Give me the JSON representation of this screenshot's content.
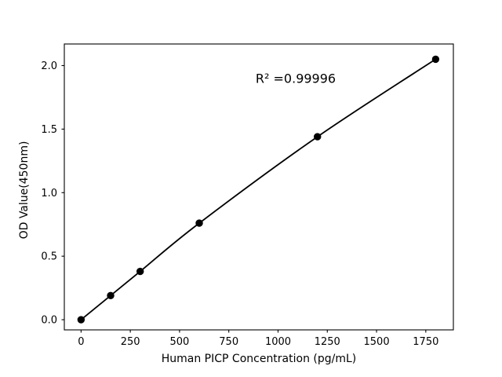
{
  "chart_data": {
    "type": "line",
    "title": "",
    "xlabel": "Human PICP Concentration (pg/mL)",
    "ylabel": "OD Value(450nm)",
    "annotation": {
      "text": "R² =0.99996"
    },
    "x": [
      0,
      150,
      300,
      600,
      1200,
      1800
    ],
    "y": [
      0.0,
      0.19,
      0.38,
      0.76,
      1.44,
      2.05
    ],
    "xtick_values": [
      0,
      250,
      500,
      750,
      1000,
      1250,
      1500,
      1750
    ],
    "xtick_labels": [
      "0",
      "250",
      "500",
      "750",
      "1000",
      "1250",
      "1500",
      "1750"
    ],
    "ytick_values": [
      0.0,
      0.5,
      1.0,
      1.5,
      2.0
    ],
    "ytick_labels": [
      "0.0",
      "0.5",
      "1.0",
      "1.5",
      "2.0"
    ],
    "xlim": [
      -85,
      1890
    ],
    "ylim": [
      -0.08,
      2.17
    ],
    "grid": false,
    "legend": null,
    "colors": {
      "line": "#000000",
      "marker": "#000000",
      "axis": "#000000",
      "text": "#000000",
      "background": "#ffffff"
    },
    "marker_radius": 4.7,
    "line_width": 1.8
  }
}
